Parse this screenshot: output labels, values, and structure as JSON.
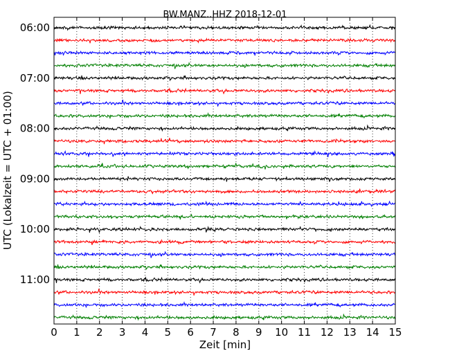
{
  "chart_data": {
    "type": "line",
    "title": "BW.MANZ..HHZ 2018-12-01",
    "xlabel": "Zeit  [min]",
    "ylabel": "UTC (Lokalzeit = UTC + 01:00)",
    "xlim": [
      0,
      15
    ],
    "x_ticks": [
      "0",
      "1",
      "2",
      "3",
      "4",
      "5",
      "6",
      "7",
      "8",
      "9",
      "10",
      "11",
      "12",
      "13",
      "14",
      "15"
    ],
    "y_tick_labels": [
      "06:00",
      "07:00",
      "08:00",
      "09:00",
      "10:00",
      "11:00"
    ],
    "vertical_grid": "dotted",
    "trace_colors": [
      "#000000",
      "#ff0000",
      "#0000ff",
      "#007f00"
    ],
    "traces": [
      {
        "start": "06:00",
        "color": "#000000"
      },
      {
        "start": "06:15",
        "color": "#ff0000"
      },
      {
        "start": "06:30",
        "color": "#0000ff"
      },
      {
        "start": "06:45",
        "color": "#007f00"
      },
      {
        "start": "07:00",
        "color": "#000000"
      },
      {
        "start": "07:15",
        "color": "#ff0000"
      },
      {
        "start": "07:30",
        "color": "#0000ff"
      },
      {
        "start": "07:45",
        "color": "#007f00"
      },
      {
        "start": "08:00",
        "color": "#000000"
      },
      {
        "start": "08:15",
        "color": "#ff0000"
      },
      {
        "start": "08:30",
        "color": "#0000ff"
      },
      {
        "start": "08:45",
        "color": "#007f00"
      },
      {
        "start": "09:00",
        "color": "#000000"
      },
      {
        "start": "09:15",
        "color": "#ff0000"
      },
      {
        "start": "09:30",
        "color": "#0000ff"
      },
      {
        "start": "09:45",
        "color": "#007f00"
      },
      {
        "start": "10:00",
        "color": "#000000"
      },
      {
        "start": "10:15",
        "color": "#ff0000"
      },
      {
        "start": "10:30",
        "color": "#0000ff"
      },
      {
        "start": "10:45",
        "color": "#007f00"
      },
      {
        "start": "11:00",
        "color": "#000000"
      },
      {
        "start": "11:15",
        "color": "#ff0000"
      },
      {
        "start": "11:30",
        "color": "#0000ff"
      },
      {
        "start": "11:45",
        "color": "#007f00"
      }
    ]
  }
}
